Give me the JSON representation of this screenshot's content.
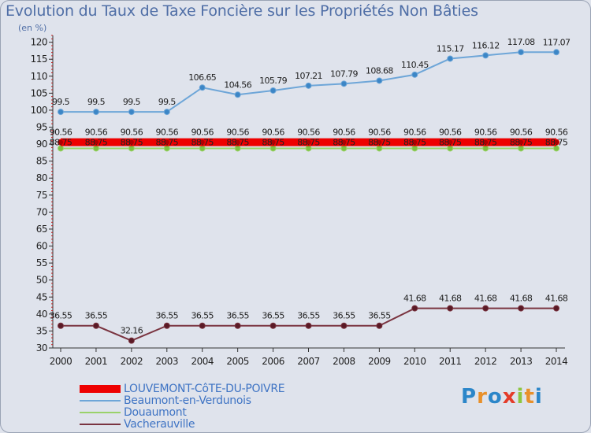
{
  "header": {
    "title": "Evolution du Taux de Taxe Foncière sur les Propriétés Non Bâties",
    "unit": "(en %)"
  },
  "brand": {
    "text": "Proxiti",
    "letters": [
      "P",
      "r",
      "o",
      "x",
      "i",
      "t",
      "i"
    ],
    "letter_colors": [
      "#2b86c9",
      "#e8902a",
      "#2b86c9",
      "#e43c2a",
      "#8dc63f",
      "#e8902a",
      "#2b86c9"
    ]
  },
  "chart_data": {
    "type": "line",
    "categories": [
      "2000",
      "2001",
      "2002",
      "2003",
      "2004",
      "2005",
      "2006",
      "2007",
      "2008",
      "2009",
      "2010",
      "2011",
      "2012",
      "2013",
      "2014"
    ],
    "yticks": [
      30,
      35,
      40,
      45,
      50,
      55,
      60,
      65,
      70,
      75,
      80,
      85,
      90,
      95,
      100,
      105,
      110,
      115,
      120
    ],
    "ylim": [
      30,
      122
    ],
    "grid": false,
    "legend_position": "bottom-left",
    "series": [
      {
        "name": "LOUVEMONT-CôTE-DU-POIVRE",
        "legend_label": "LOUVEMONT-CôTE-DU-POIVRE",
        "values": [
          90.56,
          90.56,
          90.56,
          90.56,
          90.56,
          90.56,
          90.56,
          90.56,
          90.56,
          90.56,
          90.56,
          90.56,
          90.56,
          90.56,
          90.56
        ],
        "labels": [
          "90.56",
          "90.56",
          "90.56",
          "90.56",
          "90.56",
          "90.56",
          "90.56",
          "90.56",
          "90.56",
          "90.56",
          "90.56",
          "90.56",
          "90.56",
          "90.56",
          "90.56"
        ],
        "color": "#ee0000",
        "marker": "#b00000"
      },
      {
        "name": "Beaumont-en-Verdunois",
        "legend_label": "Beaumont-en-Verdunois",
        "values": [
          99.5,
          99.5,
          99.5,
          99.5,
          106.65,
          104.56,
          105.79,
          107.21,
          107.79,
          108.68,
          110.45,
          115.17,
          116.12,
          117.08,
          117.07
        ],
        "labels": [
          "99.5",
          "99.5",
          "99.5",
          "99.5",
          "106.65",
          "104.56",
          "105.79",
          "107.21",
          "107.79",
          "108.68",
          "110.45",
          "115.17",
          "116.12",
          "117.08",
          "117.07"
        ],
        "color": "#6ea6d8",
        "marker": "#3c86c6"
      },
      {
        "name": "Douaumont",
        "legend_label": "Douaumont",
        "values": [
          88.75,
          88.75,
          88.75,
          88.75,
          88.75,
          88.75,
          88.75,
          88.75,
          88.75,
          88.75,
          88.75,
          88.75,
          88.75,
          88.75,
          88.75
        ],
        "labels": [
          "88.75",
          "88.75",
          "88.75",
          "88.75",
          "88.75",
          "88.75",
          "88.75",
          "88.75",
          "88.75",
          "88.75",
          "88.75",
          "88.75",
          "88.75",
          "88.75",
          "88.75"
        ],
        "color": "#9ad26a",
        "marker": "#7cc242"
      },
      {
        "name": "Vacherauville",
        "legend_label": "Vacherauville",
        "values": [
          36.55,
          36.55,
          32.16,
          36.55,
          36.55,
          36.55,
          36.55,
          36.55,
          36.55,
          36.55,
          41.68,
          41.68,
          41.68,
          41.68,
          41.68
        ],
        "labels": [
          "36.55",
          "36.55",
          "32.16",
          "36.55",
          "36.55",
          "36.55",
          "36.55",
          "36.55",
          "36.55",
          "36.55",
          "41.68",
          "41.68",
          "41.68",
          "41.68",
          "41.68"
        ],
        "color": "#7a3440",
        "marker": "#5a1a26"
      }
    ]
  }
}
